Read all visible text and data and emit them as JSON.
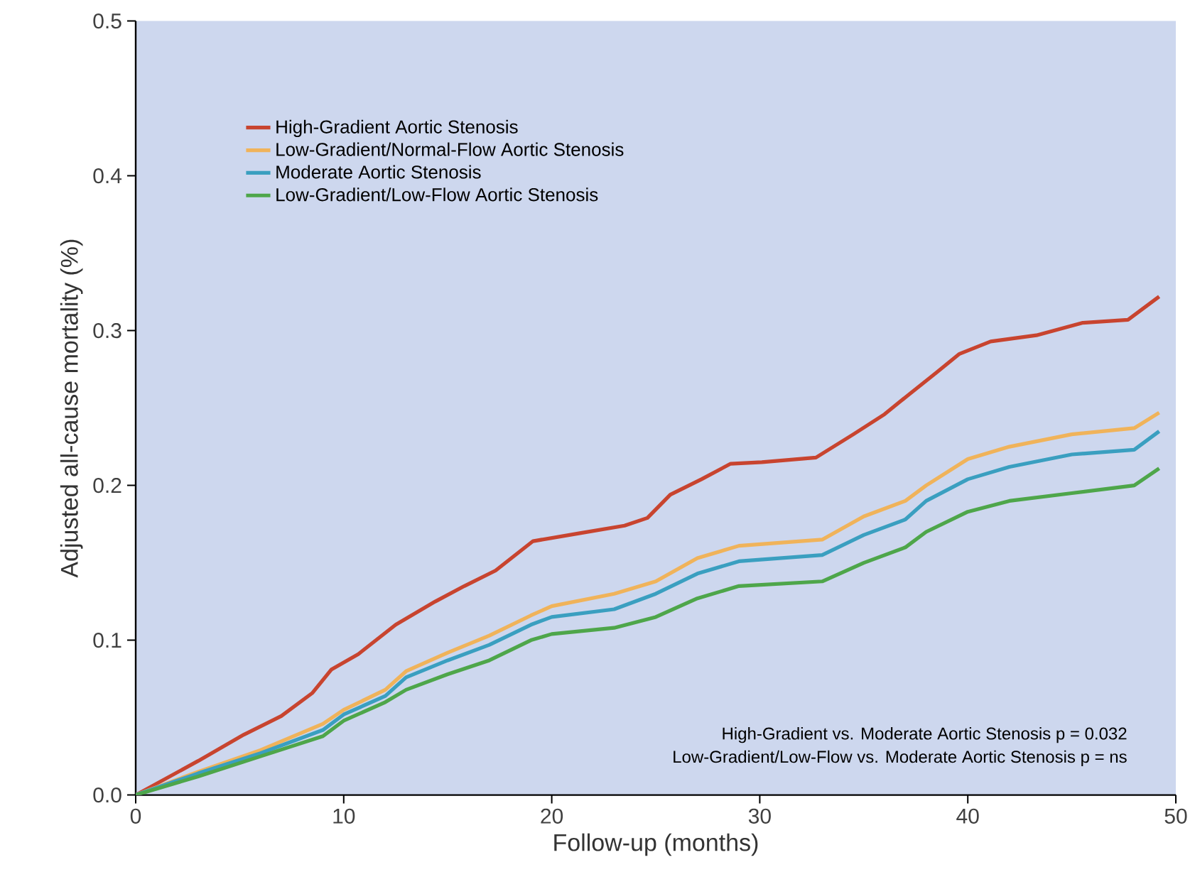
{
  "chart_data": {
    "type": "line",
    "xlabel": "Follow-up (months)",
    "ylabel": "Adjusted all-cause mortality (%)",
    "xlim": [
      0,
      50
    ],
    "ylim": [
      0,
      0.5
    ],
    "xticks": [
      0,
      10,
      20,
      30,
      40,
      50
    ],
    "yticks": [
      {
        "value": 0,
        "label": "0.0"
      },
      0.1,
      0.2,
      0.3,
      0.4,
      0.5
    ],
    "legend": "top left",
    "grid": false,
    "annotations": [
      "High-Gradient vs. Moderate Aortic Stenosis p = 0.032",
      "Low-Gradient/Low-Flow vs. Moderate Aortic Stenosis p = ns"
    ],
    "series": [
      {
        "name": "High-Gradient Aortic Stenosis",
        "color": "#c8442f",
        "x": [
          0,
          3.0,
          5.2,
          7.0,
          8.5,
          9.4,
          10.7,
          12.5,
          14.4,
          15.8,
          17.3,
          19.1,
          21.3,
          23.5,
          24.6,
          25.7,
          27.2,
          28.6,
          30.1,
          32.7,
          34.5,
          36.0,
          37.1,
          38.5,
          39.6,
          41.1,
          43.3,
          45.5,
          47.7,
          49.2
        ],
        "values": [
          0,
          0.022,
          0.039,
          0.051,
          0.066,
          0.081,
          0.091,
          0.11,
          0.125,
          0.135,
          0.145,
          0.164,
          0.169,
          0.174,
          0.179,
          0.194,
          0.204,
          0.214,
          0.215,
          0.218,
          0.233,
          0.246,
          0.258,
          0.273,
          0.285,
          0.293,
          0.297,
          0.305,
          0.307,
          0.322
        ]
      },
      {
        "name": "Low-Gradient/Normal-Flow Aortic Stenosis",
        "color": "#f0b35a",
        "x": [
          0,
          3,
          6,
          9,
          10,
          12,
          13,
          15,
          17,
          19,
          20,
          23,
          25,
          27,
          29,
          33,
          35,
          37,
          38,
          40,
          42,
          45,
          48,
          49.2
        ],
        "values": [
          0,
          0.015,
          0.029,
          0.046,
          0.055,
          0.068,
          0.08,
          0.092,
          0.103,
          0.116,
          0.122,
          0.13,
          0.138,
          0.153,
          0.161,
          0.165,
          0.18,
          0.19,
          0.2,
          0.217,
          0.225,
          0.233,
          0.237,
          0.247
        ]
      },
      {
        "name": "Moderate Aortic Stenosis",
        "color": "#3a9fc0",
        "x": [
          0,
          3,
          6,
          9,
          10,
          12,
          13,
          15,
          17,
          19,
          20,
          23,
          25,
          27,
          29,
          33,
          35,
          37,
          38,
          40,
          42,
          45,
          48,
          49.2
        ],
        "values": [
          0,
          0.014,
          0.027,
          0.042,
          0.052,
          0.064,
          0.076,
          0.087,
          0.097,
          0.11,
          0.115,
          0.12,
          0.13,
          0.143,
          0.151,
          0.155,
          0.168,
          0.178,
          0.19,
          0.204,
          0.212,
          0.22,
          0.223,
          0.235
        ]
      },
      {
        "name": "Low-Gradient/Low-Flow Aortic Stenosis",
        "color": "#4ea64a",
        "x": [
          0,
          3,
          6,
          9,
          10,
          12,
          13,
          15,
          17,
          19,
          20,
          23,
          25,
          27,
          29,
          33,
          35,
          37,
          38,
          40,
          42,
          45,
          48,
          49.2
        ],
        "values": [
          0,
          0.012,
          0.025,
          0.038,
          0.048,
          0.06,
          0.068,
          0.078,
          0.087,
          0.1,
          0.104,
          0.108,
          0.115,
          0.127,
          0.135,
          0.138,
          0.15,
          0.16,
          0.17,
          0.183,
          0.19,
          0.195,
          0.2,
          0.211
        ]
      }
    ]
  }
}
